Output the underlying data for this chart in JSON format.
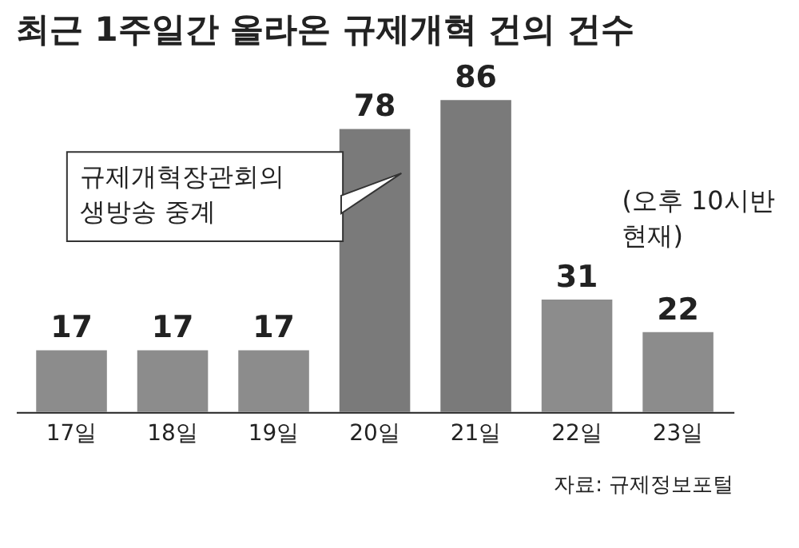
{
  "chart_data": {
    "type": "bar",
    "title": "최근 1주일간 올라온 규제개혁 건의 건수",
    "categories": [
      "17일",
      "18일",
      "19일",
      "20일",
      "21일",
      "22일",
      "23일"
    ],
    "values": [
      17,
      17,
      17,
      78,
      86,
      31,
      22
    ],
    "colors": [
      "#8c8c8c",
      "#8c8c8c",
      "#8c8c8c",
      "#7a7a7a",
      "#7a7a7a",
      "#8c8c8c",
      "#8c8c8c"
    ],
    "data_labels": true,
    "grid": false,
    "legend": false,
    "annotations": [
      "규제개혁장관회의\n생방송 중계",
      "(오후 10시반\n현재)",
      "자료: 규제정보포털"
    ]
  }
}
